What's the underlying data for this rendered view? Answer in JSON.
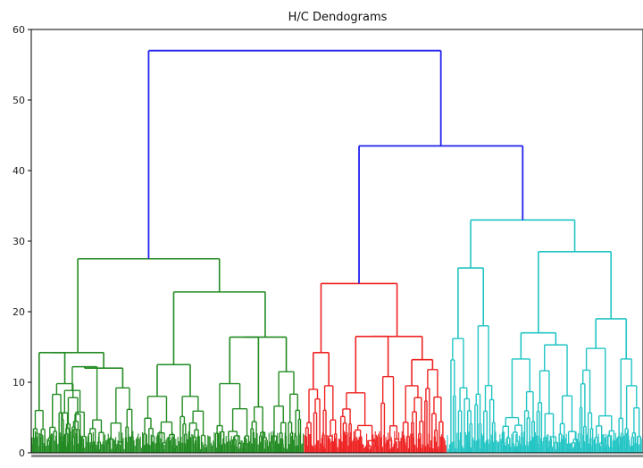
{
  "chart_data": {
    "type": "dendrogram",
    "title": "H/C Dendograms",
    "xlabel": "",
    "ylabel": "",
    "ylim": [
      0,
      60
    ],
    "yticks": [
      0,
      10,
      20,
      30,
      40,
      50,
      60
    ],
    "colors": {
      "top": "#2222ee",
      "cluster_1": "#228b22",
      "cluster_2": "#ee2222",
      "cluster_3": "#22c4c4",
      "axis": "#000000"
    },
    "leaf_tick_labels": "dense (unreadable)",
    "top_merges": [
      {
        "height": 57,
        "joins": [
          "cluster_1",
          "right_group"
        ]
      },
      {
        "height": 43.5,
        "joins": [
          "cluster_2",
          "cluster_3"
        ]
      }
    ],
    "clusters": [
      {
        "name": "cluster_1",
        "color": "#228b22",
        "root_height": 27.5,
        "sub_merges": [
          14.2,
          12.0,
          22.8,
          12.5,
          16.4,
          11.5,
          9.8,
          9.2,
          8.0
        ]
      },
      {
        "name": "cluster_2",
        "color": "#ee2222",
        "root_height": 24.0,
        "sub_merges": [
          14.2,
          16.5,
          13.2,
          11.8,
          9.5,
          10.8,
          8.5
        ]
      },
      {
        "name": "cluster_3",
        "color": "#22c4c4",
        "root_height": 33.0,
        "sub_merges": [
          26.2,
          28.5,
          17.0,
          19.0,
          16.2,
          15.3,
          14.8,
          13.3
        ]
      }
    ]
  }
}
